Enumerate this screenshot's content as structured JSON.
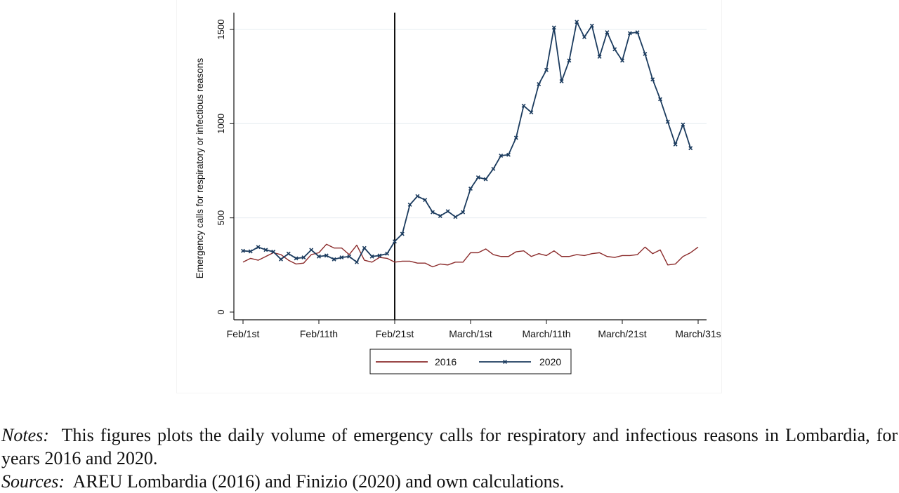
{
  "chart_data": {
    "type": "line",
    "ylabel": "Emergency calls for respiratory or infectious reasons",
    "xlabel": "",
    "ylim": [
      0,
      1600
    ],
    "yticks": [
      0,
      500,
      1000,
      1500
    ],
    "xlim": [
      0,
      61
    ],
    "xticks": [
      {
        "x": 1,
        "label": "Feb/1st"
      },
      {
        "x": 11,
        "label": "Feb/11th"
      },
      {
        "x": 21,
        "label": "Feb/21st"
      },
      {
        "x": 31,
        "label": "March/1st"
      },
      {
        "x": 41,
        "label": "March/11th"
      },
      {
        "x": 51,
        "label": "March/21st"
      },
      {
        "x": 61,
        "label": "March/31s"
      }
    ],
    "vline_x": 21,
    "grid": "horizontal",
    "legend": "bottom",
    "series": [
      {
        "name": "2016",
        "color": "#8b2b2b",
        "marker": "none",
        "values": [
          265,
          285,
          275,
          295,
          315,
          305,
          275,
          255,
          260,
          305,
          315,
          360,
          340,
          340,
          305,
          355,
          275,
          265,
          290,
          285,
          265,
          270,
          270,
          260,
          260,
          240,
          255,
          250,
          265,
          265,
          315,
          315,
          335,
          305,
          295,
          295,
          320,
          325,
          295,
          310,
          300,
          325,
          295,
          295,
          305,
          300,
          310,
          315,
          295,
          290,
          300,
          300,
          305,
          345,
          310,
          330,
          250,
          255,
          295,
          315,
          345
        ]
      },
      {
        "name": "2020",
        "color": "#1b3b5e",
        "marker": "x",
        "values": [
          325,
          322,
          345,
          330,
          320,
          280,
          310,
          285,
          290,
          330,
          295,
          300,
          280,
          290,
          295,
          265,
          340,
          295,
          300,
          310,
          375,
          415,
          570,
          615,
          595,
          530,
          510,
          535,
          505,
          530,
          655,
          715,
          705,
          760,
          830,
          835,
          925,
          1095,
          1060,
          1210,
          1285,
          1510,
          1225,
          1335,
          1540,
          1460,
          1520,
          1355,
          1485,
          1395,
          1335,
          1480,
          1485,
          1370,
          1235,
          1130,
          1010,
          890,
          995,
          870,
          null
        ]
      }
    ]
  },
  "notes": {
    "notes_label": "Notes:",
    "notes_text": "This figures plots the daily volume of emergency calls for respiratory and infectious reasons in Lombardia, for years 2016 and 2020.",
    "sources_label": "Sources:",
    "sources_text": "AREU Lombardia (2016) and Finizio (2020) and own calculations."
  }
}
